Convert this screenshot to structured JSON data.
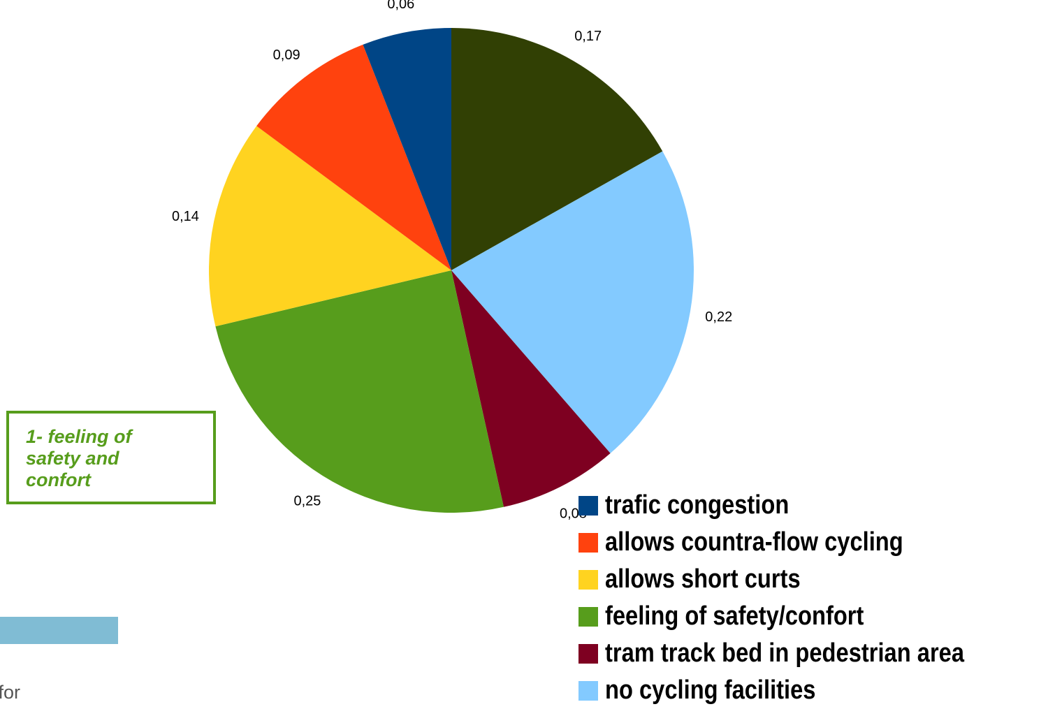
{
  "chart_data": {
    "type": "pie",
    "slices": [
      {
        "label": "trafic congestion",
        "value": 0.06,
        "value_label": "0,06",
        "color": "#004586"
      },
      {
        "label": "allows countra-flow cycling",
        "value": 0.09,
        "value_label": "0,09",
        "color": "#ff420e"
      },
      {
        "label": "allows short curts",
        "value": 0.14,
        "value_label": "0,14",
        "color": "#ffd320"
      },
      {
        "label": "feeling of safety/confort",
        "value": 0.25,
        "value_label": "0,25",
        "color": "#579d1c"
      },
      {
        "label": "tram track bed in pedestrian area",
        "value": 0.08,
        "value_label": "0,08",
        "color": "#7e0021"
      },
      {
        "label": "no cycling facilities",
        "value": 0.22,
        "value_label": "0,22",
        "color": "#83caff"
      },
      {
        "label": "",
        "value": 0.17,
        "value_label": "0,17",
        "color": "#314004"
      }
    ],
    "legend_position": "bottom-right"
  },
  "callout": {
    "text": "1- feeling of safety and confort",
    "color": "#579d1c"
  },
  "footer": {
    "bar_color": "#80bcd4",
    "text": "entists for"
  }
}
